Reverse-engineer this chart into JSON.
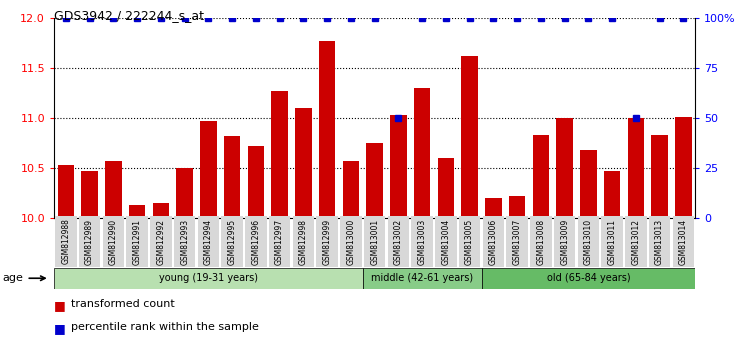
{
  "title": "GDS3942 / 222244_s_at",
  "samples": [
    "GSM812988",
    "GSM812989",
    "GSM812990",
    "GSM812991",
    "GSM812992",
    "GSM812993",
    "GSM812994",
    "GSM812995",
    "GSM812996",
    "GSM812997",
    "GSM812998",
    "GSM812999",
    "GSM813000",
    "GSM813001",
    "GSM813002",
    "GSM813003",
    "GSM813004",
    "GSM813005",
    "GSM813006",
    "GSM813007",
    "GSM813008",
    "GSM813009",
    "GSM813010",
    "GSM813011",
    "GSM813012",
    "GSM813013",
    "GSM813014"
  ],
  "bar_values": [
    10.53,
    10.47,
    10.57,
    10.13,
    10.15,
    10.5,
    10.97,
    10.82,
    10.72,
    11.27,
    11.1,
    11.77,
    10.57,
    10.75,
    11.03,
    11.3,
    10.6,
    11.62,
    10.2,
    10.22,
    10.83,
    11.0,
    10.68,
    10.47,
    11.0,
    10.83,
    11.01
  ],
  "percentile_values": [
    100,
    100,
    100,
    100,
    100,
    100,
    100,
    100,
    100,
    100,
    100,
    100,
    100,
    100,
    50,
    100,
    100,
    100,
    100,
    100,
    100,
    100,
    100,
    100,
    50,
    100,
    100
  ],
  "bar_color": "#cc0000",
  "percentile_color": "#0000cc",
  "ylim_left": [
    10.0,
    12.0
  ],
  "ylim_right": [
    0,
    100
  ],
  "yticks_left": [
    10.0,
    10.5,
    11.0,
    11.5,
    12.0
  ],
  "yticks_right": [
    0,
    25,
    50,
    75,
    100
  ],
  "ytick_labels_right": [
    "0",
    "25",
    "50",
    "75",
    "100%"
  ],
  "groups": [
    {
      "label": "young (19-31 years)",
      "start": 0,
      "end": 13,
      "color": "#b8e0b0"
    },
    {
      "label": "middle (42-61 years)",
      "start": 13,
      "end": 18,
      "color": "#88cc88"
    },
    {
      "label": "old (65-84 years)",
      "start": 18,
      "end": 27,
      "color": "#66bb66"
    }
  ],
  "age_label": "age",
  "legend_bar_label": "transformed count",
  "legend_pct_label": "percentile rank within the sample",
  "background_color": "#ffffff",
  "tick_label_bg": "#d8d8d8",
  "grid_color": "#000000"
}
